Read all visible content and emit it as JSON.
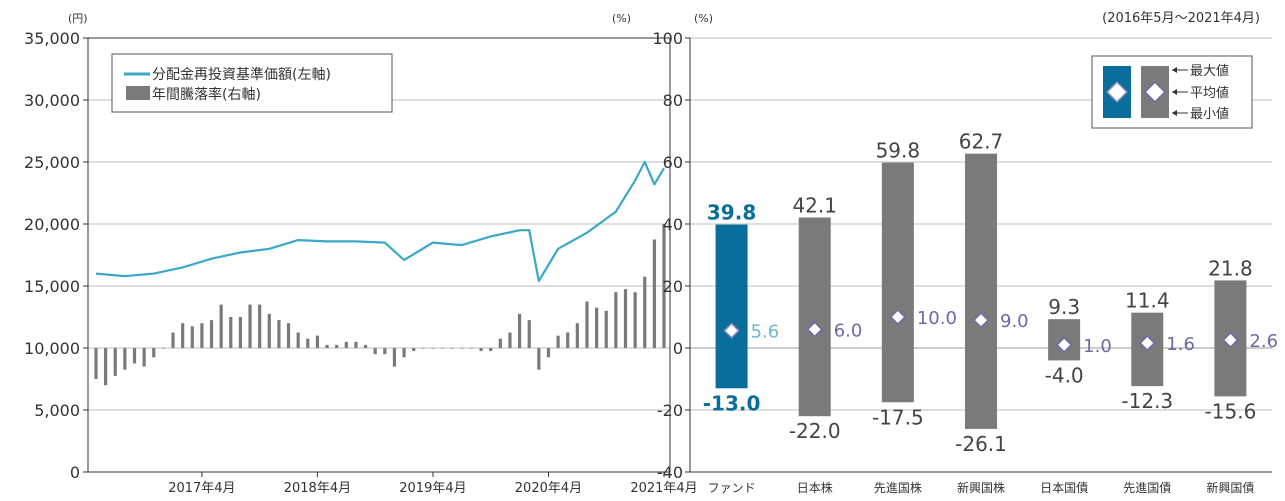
{
  "colors": {
    "fund_blue": "#0a6e9c",
    "line_teal": "#3ba8c8",
    "gray_bar": "#7a7a7a",
    "axis": "#333333",
    "grid": "#bfbfbf",
    "avg_fund": "#6fb6d3",
    "avg_other": "#6a6aa8"
  },
  "left_chart": {
    "left_axis_unit": "(円)",
    "right_axis_unit": "(%)",
    "left_ticks": [
      "0",
      "5,000",
      "10,000",
      "15,000",
      "20,000",
      "25,000",
      "30,000",
      "35,000"
    ],
    "x_labels": [
      "2017年4月",
      "2018年4月",
      "2019年4月",
      "2020年4月",
      "2021年4月"
    ],
    "legend": {
      "line_label": "分配金再投資基準価額(左軸)",
      "bar_label": "年間騰落率(右軸)"
    }
  },
  "right_chart": {
    "unit": "(%)",
    "period": "(2016年5月〜2021年4月)",
    "y_ticks": [
      "-40",
      "-20",
      "0",
      "20",
      "40",
      "60",
      "80",
      "100"
    ],
    "legend": {
      "max_label": "最大値",
      "avg_label": "平均値",
      "min_label": "最小値"
    }
  },
  "chart_data": [
    {
      "type": "line",
      "series": [
        {
          "name": "分配金再投資基準価額(左軸)",
          "axis": "left",
          "x": [
            "2016-05",
            "2016-08",
            "2016-11",
            "2017-02",
            "2017-05",
            "2017-08",
            "2017-11",
            "2018-02",
            "2018-05",
            "2018-08",
            "2018-11",
            "2019-01",
            "2019-04",
            "2019-07",
            "2019-10",
            "2020-01",
            "2020-02",
            "2020-03",
            "2020-05",
            "2020-08",
            "2020-11",
            "2021-01",
            "2021-02",
            "2021-03",
            "2021-04"
          ],
          "values": [
            16000,
            15800,
            16000,
            16500,
            17200,
            17700,
            18000,
            18700,
            18600,
            18600,
            18500,
            17100,
            18500,
            18300,
            19000,
            19500,
            19500,
            15400,
            18000,
            19300,
            21000,
            23500,
            25000,
            23200,
            24500
          ]
        },
        {
          "name": "年間騰落率(右軸)",
          "axis": "right",
          "type": "bar",
          "x": [
            "2016-05",
            "2016-06",
            "2016-07",
            "2016-08",
            "2016-09",
            "2016-10",
            "2016-11",
            "2016-12",
            "2017-01",
            "2017-02",
            "2017-03",
            "2017-04",
            "2017-05",
            "2017-06",
            "2017-07",
            "2017-08",
            "2017-09",
            "2017-10",
            "2017-11",
            "2017-12",
            "2018-01",
            "2018-02",
            "2018-03",
            "2018-04",
            "2018-05",
            "2018-06",
            "2018-07",
            "2018-08",
            "2018-09",
            "2018-10",
            "2018-11",
            "2018-12",
            "2019-01",
            "2019-02",
            "2019-03",
            "2019-04",
            "2019-05",
            "2019-06",
            "2019-07",
            "2019-08",
            "2019-09",
            "2019-10",
            "2019-11",
            "2019-12",
            "2020-01",
            "2020-02",
            "2020-03",
            "2020-04",
            "2020-05",
            "2020-06",
            "2020-07",
            "2020-08",
            "2020-09",
            "2020-10",
            "2020-11",
            "2020-12",
            "2021-01",
            "2021-02",
            "2021-03",
            "2021-04"
          ],
          "values": [
            -10,
            -12,
            -9,
            -7,
            -5,
            -6,
            -3,
            0,
            5,
            8,
            7,
            8,
            9,
            14,
            10,
            10,
            14,
            14,
            11,
            9,
            8,
            5,
            3,
            4,
            1,
            1,
            2,
            2,
            1,
            -2,
            -2,
            -6,
            -3,
            -1,
            0,
            0,
            0,
            0,
            0,
            0,
            -1,
            -1,
            3,
            5,
            11,
            9,
            -7,
            -3,
            4,
            5,
            8,
            15,
            13,
            12,
            18,
            19,
            18,
            23,
            35,
            40
          ]
        }
      ],
      "left_axis": {
        "unit": "円",
        "range": [
          0,
          35000
        ]
      },
      "right_axis": {
        "unit": "%",
        "range": [
          -40,
          100
        ]
      },
      "x_tick_labels": [
        "2017年4月",
        "2018年4月",
        "2019年4月",
        "2020年4月",
        "2021年4月"
      ],
      "legend_position": "top-left"
    },
    {
      "type": "bar",
      "period": "(2016年5月〜2021年4月)",
      "categories": [
        "ファンド",
        "日本株",
        "先進国株",
        "新興国株",
        "日本国債",
        "先進国債",
        "新興国債"
      ],
      "max": [
        39.8,
        42.1,
        59.8,
        62.7,
        9.3,
        11.4,
        21.8
      ],
      "avg": [
        5.6,
        6.0,
        10.0,
        9.0,
        1.0,
        1.6,
        2.6
      ],
      "min": [
        -13.0,
        -22.0,
        -17.5,
        -26.1,
        -4.0,
        -12.3,
        -15.6
      ],
      "max_labels": [
        "39.8",
        "42.1",
        "59.8",
        "62.7",
        "9.3",
        "11.4",
        "21.8"
      ],
      "avg_labels": [
        "5.6",
        "6.0",
        "10.0",
        "9.0",
        "1.0",
        "1.6",
        "2.6"
      ],
      "min_labels": [
        "-13.0",
        "-22.0",
        "-17.5",
        "-26.1",
        "-4.0",
        "-12.3",
        "-15.6"
      ],
      "ylim": [
        -40,
        100
      ],
      "grid": true,
      "legend_position": "top-right"
    }
  ]
}
